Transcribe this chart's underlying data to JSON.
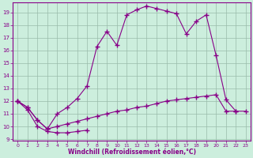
{
  "xlabel": "Windchill (Refroidissement éolien,°C)",
  "bg_color": "#cceedd",
  "line_color": "#880088",
  "grid_color": "#99bbaa",
  "xlim": [
    -0.5,
    23.5
  ],
  "ylim": [
    8.9,
    19.8
  ],
  "yticks": [
    9,
    10,
    11,
    12,
    13,
    14,
    15,
    16,
    17,
    18,
    19
  ],
  "xticks": [
    0,
    1,
    2,
    3,
    4,
    5,
    6,
    7,
    8,
    9,
    10,
    11,
    12,
    13,
    14,
    15,
    16,
    17,
    18,
    19,
    20,
    21,
    22,
    23
  ],
  "curve1_x": [
    0,
    1,
    2,
    3,
    4,
    5,
    6,
    7
  ],
  "curve1_y": [
    12.0,
    11.3,
    10.0,
    9.6,
    9.5,
    9.5,
    9.6,
    9.7
  ],
  "curve2_x": [
    0,
    1,
    2,
    3,
    4,
    5,
    6,
    7,
    8,
    9,
    10,
    11,
    12,
    13,
    14,
    15,
    16,
    17,
    18,
    19,
    20,
    21,
    22,
    23
  ],
  "curve2_y": [
    12.0,
    11.5,
    10.5,
    9.8,
    10.0,
    10.2,
    10.4,
    10.6,
    10.8,
    11.0,
    11.2,
    11.3,
    11.5,
    11.6,
    11.8,
    12.0,
    12.1,
    12.2,
    12.3,
    12.4,
    12.5,
    11.2,
    11.2,
    11.2
  ],
  "curve3_x": [
    0,
    1,
    2,
    3,
    4,
    5,
    6,
    7,
    8,
    9,
    10,
    11,
    12,
    13,
    14,
    15,
    16,
    17,
    18,
    19,
    20,
    21,
    22
  ],
  "curve3_y": [
    12.0,
    11.5,
    10.5,
    9.8,
    11.0,
    11.5,
    12.2,
    13.2,
    16.3,
    17.5,
    16.4,
    18.8,
    19.2,
    19.5,
    19.3,
    19.1,
    18.9,
    17.3,
    18.3,
    18.8,
    15.6,
    12.1,
    11.2
  ]
}
